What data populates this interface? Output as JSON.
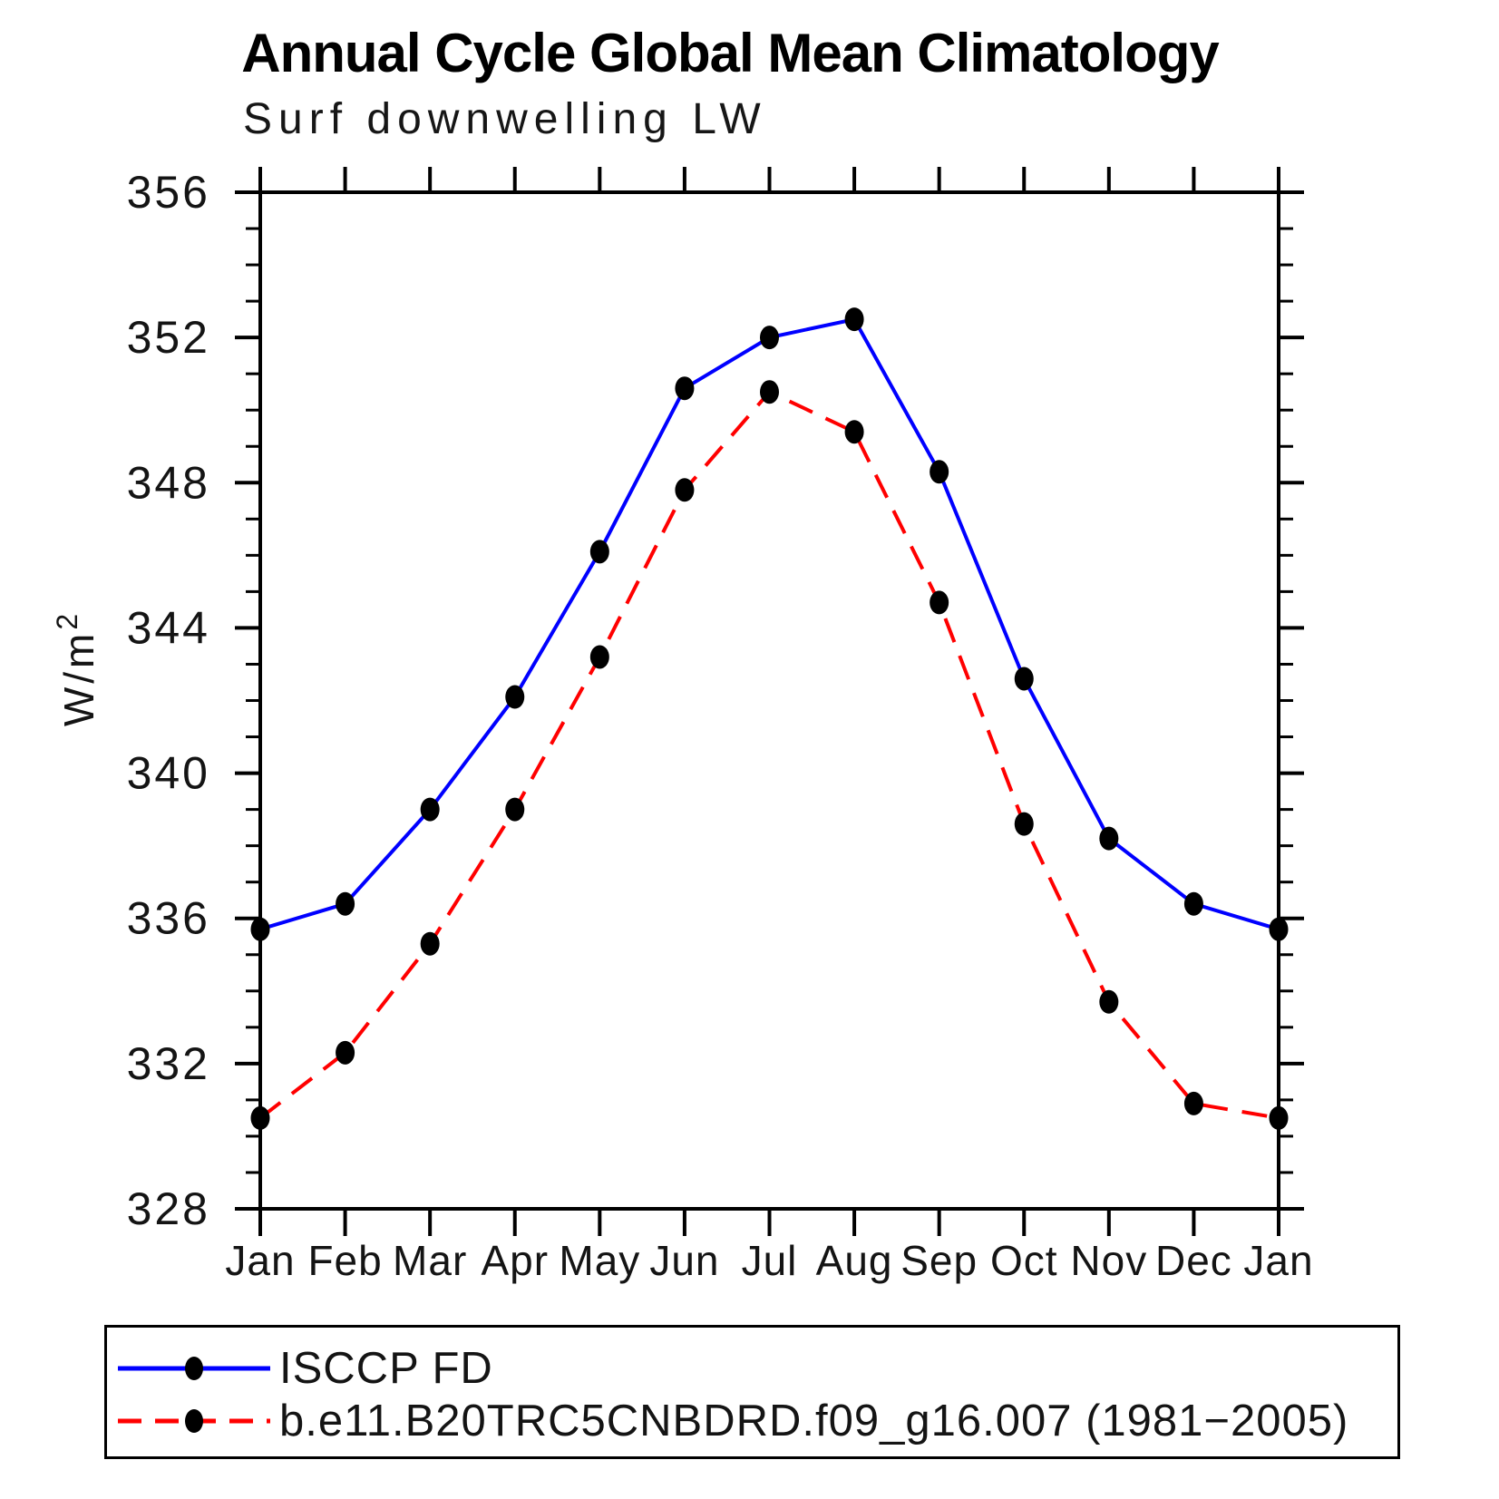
{
  "page": {
    "background_color": "#ffffff"
  },
  "header": {
    "title": "Annual Cycle Global Mean Climatology",
    "subtitle": "Surf downwelling LW"
  },
  "chart_data": {
    "type": "line",
    "title": "Annual Cycle Global Mean Climatology",
    "subtitle": "Surf downwelling LW",
    "ylabel": {
      "base": "W/m",
      "sup": "2"
    },
    "xlabel": "",
    "x_tick_labels": [
      "Jan",
      "Feb",
      "Mar",
      "Apr",
      "May",
      "Jun",
      "Jul",
      "Aug",
      "Sep",
      "Oct",
      "Nov",
      "Dec",
      "Jan"
    ],
    "ylim": [
      328,
      356
    ],
    "y_major_ticks": [
      328,
      332,
      336,
      340,
      344,
      348,
      352,
      356
    ],
    "y_minor_tick_step": 1,
    "grid": "off",
    "legend_position": "bottom",
    "axis_color": "#000000",
    "marker_color": "#000000",
    "series": [
      {
        "name": "ISCCP FD",
        "color": "#0000ff",
        "line_style": "solid",
        "marker": "filled-circle",
        "values": [
          335.7,
          336.4,
          339.0,
          342.1,
          346.1,
          350.6,
          352.0,
          352.5,
          348.3,
          342.6,
          338.2,
          336.4,
          335.7
        ]
      },
      {
        "name": "b.e11.B20TRC5CNBDRD.f09_g16.007 (1981−2005)",
        "color": "#ff0000",
        "line_style": "dashed",
        "marker": "filled-circle",
        "values": [
          330.5,
          332.3,
          335.3,
          339.0,
          343.2,
          347.8,
          350.5,
          349.4,
          344.7,
          338.6,
          333.7,
          330.9,
          330.5
        ]
      }
    ]
  }
}
